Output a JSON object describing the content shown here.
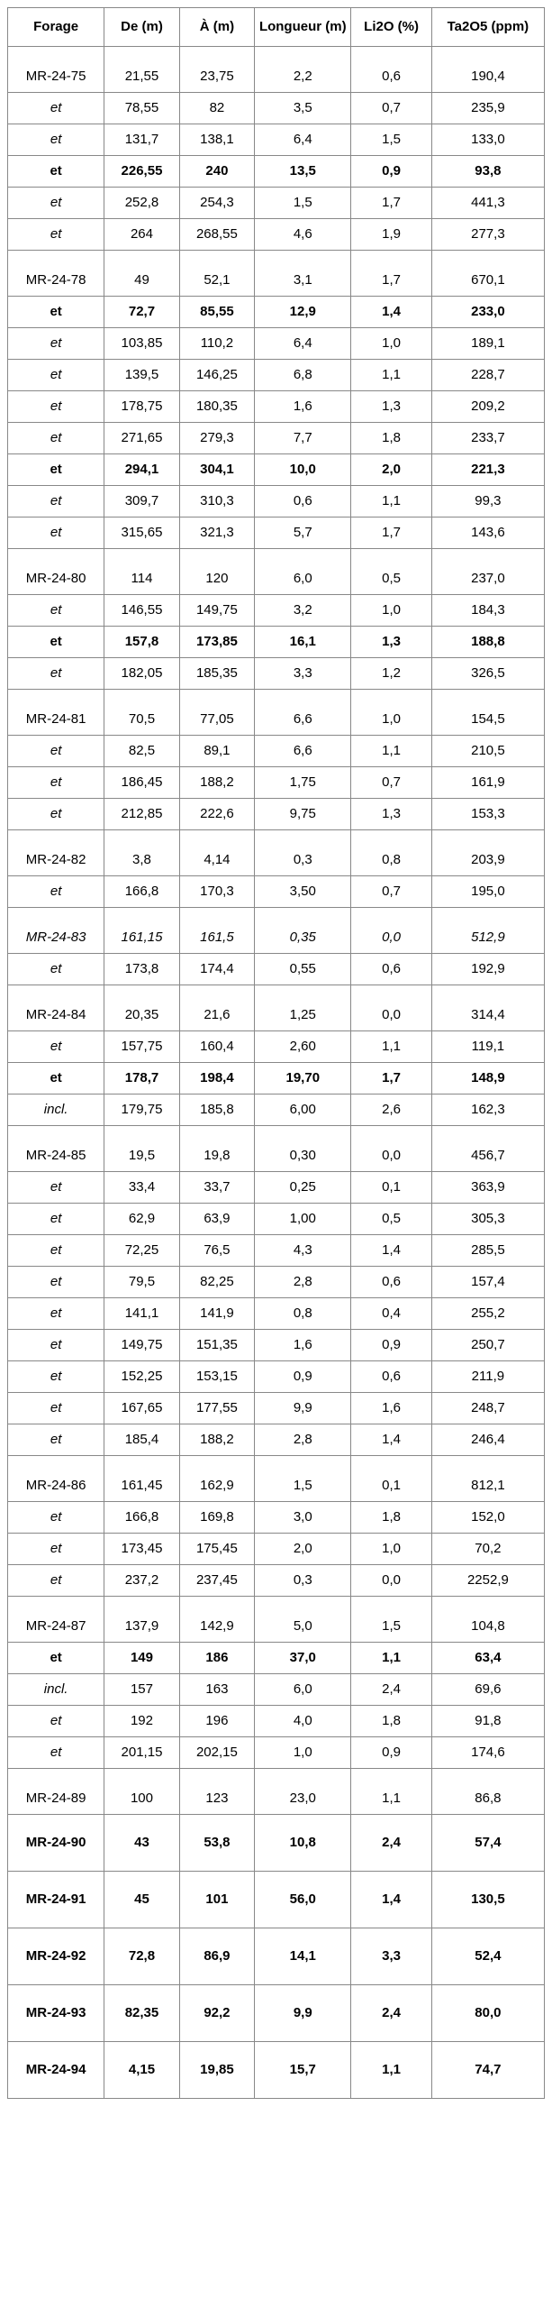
{
  "headers": {
    "forage": "Forage",
    "de": "De (m)",
    "a": "À (m)",
    "longueur": "Longueur (m)",
    "li2o": "Li2O (%)",
    "ta2o5": "Ta2O5 (ppm)"
  },
  "rows": [
    {
      "cells": [
        "MR-24-75",
        "21,55",
        "23,75",
        "2,2",
        "0,6",
        "190,4"
      ],
      "section": true
    },
    {
      "cells": [
        "et",
        "78,55",
        "82",
        "3,5",
        "0,7",
        "235,9"
      ],
      "italic": true
    },
    {
      "cells": [
        "et",
        "131,7",
        "138,1",
        "6,4",
        "1,5",
        "133,0"
      ],
      "italic": true
    },
    {
      "cells": [
        "et",
        "226,55",
        "240",
        "13,5",
        "0,9",
        "93,8"
      ],
      "bold": true
    },
    {
      "cells": [
        "et",
        "252,8",
        "254,3",
        "1,5",
        "1,7",
        "441,3"
      ],
      "italic": true
    },
    {
      "cells": [
        "et",
        "264",
        "268,55",
        "4,6",
        "1,9",
        "277,3"
      ],
      "italic": true
    },
    {
      "cells": [
        "MR-24-78",
        "49",
        "52,1",
        "3,1",
        "1,7",
        "670,1"
      ],
      "section": true
    },
    {
      "cells": [
        "et",
        "72,7",
        "85,55",
        "12,9",
        "1,4",
        "233,0"
      ],
      "bold": true
    },
    {
      "cells": [
        "et",
        "103,85",
        "110,2",
        "6,4",
        "1,0",
        "189,1"
      ],
      "italic": true
    },
    {
      "cells": [
        "et",
        "139,5",
        "146,25",
        "6,8",
        "1,1",
        "228,7"
      ],
      "italic": true
    },
    {
      "cells": [
        "et",
        "178,75",
        "180,35",
        "1,6",
        "1,3",
        "209,2"
      ],
      "italic": true
    },
    {
      "cells": [
        "et",
        "271,65",
        "279,3",
        "7,7",
        "1,8",
        "233,7"
      ],
      "italic": true
    },
    {
      "cells": [
        "et",
        "294,1",
        "304,1",
        "10,0",
        "2,0",
        "221,3"
      ],
      "bold": true
    },
    {
      "cells": [
        "et",
        "309,7",
        "310,3",
        "0,6",
        "1,1",
        "99,3"
      ],
      "italic": true
    },
    {
      "cells": [
        "et",
        "315,65",
        "321,3",
        "5,7",
        "1,7",
        "143,6"
      ],
      "italic": true
    },
    {
      "cells": [
        "MR-24-80",
        "114",
        "120",
        "6,0",
        "0,5",
        "237,0"
      ],
      "section": true
    },
    {
      "cells": [
        "et",
        "146,55",
        "149,75",
        "3,2",
        "1,0",
        "184,3"
      ],
      "italic": true
    },
    {
      "cells": [
        "et",
        "157,8",
        "173,85",
        "16,1",
        "1,3",
        "188,8"
      ],
      "bold": true
    },
    {
      "cells": [
        "et",
        "182,05",
        "185,35",
        "3,3",
        "1,2",
        "326,5"
      ],
      "italic": true
    },
    {
      "cells": [
        "MR-24-81",
        "70,5",
        "77,05",
        "6,6",
        "1,0",
        "154,5"
      ],
      "section": true
    },
    {
      "cells": [
        "et",
        "82,5",
        "89,1",
        "6,6",
        "1,1",
        "210,5"
      ],
      "italic": true
    },
    {
      "cells": [
        "et",
        "186,45",
        "188,2",
        "1,75",
        "0,7",
        "161,9"
      ],
      "italic": true
    },
    {
      "cells": [
        "et",
        "212,85",
        "222,6",
        "9,75",
        "1,3",
        "153,3"
      ],
      "italic": true
    },
    {
      "cells": [
        "MR-24-82",
        "3,8",
        "4,14",
        "0,3",
        "0,8",
        "203,9"
      ],
      "section": true
    },
    {
      "cells": [
        "et",
        "166,8",
        "170,3",
        "3,50",
        "0,7",
        "195,0"
      ],
      "italic": true
    },
    {
      "cells": [
        "MR-24-83",
        "161,15",
        "161,5",
        "0,35",
        "0,0",
        "512,9"
      ],
      "section": true,
      "fullItalic": true
    },
    {
      "cells": [
        "et",
        "173,8",
        "174,4",
        "0,55",
        "0,6",
        "192,9"
      ],
      "italic": true
    },
    {
      "cells": [
        "MR-24-84",
        "20,35",
        "21,6",
        "1,25",
        "0,0",
        "314,4"
      ],
      "section": true
    },
    {
      "cells": [
        "et",
        "157,75",
        "160,4",
        "2,60",
        "1,1",
        "119,1"
      ],
      "italic": true
    },
    {
      "cells": [
        "et",
        "178,7",
        "198,4",
        "19,70",
        "1,7",
        "148,9"
      ],
      "bold": true
    },
    {
      "cells": [
        "incl.",
        "179,75",
        "185,8",
        "6,00",
        "2,6",
        "162,3"
      ],
      "italic": true
    },
    {
      "cells": [
        "MR-24-85",
        "19,5",
        "19,8",
        "0,30",
        "0,0",
        "456,7"
      ],
      "section": true
    },
    {
      "cells": [
        "et",
        "33,4",
        "33,7",
        "0,25",
        "0,1",
        "363,9"
      ],
      "italic": true
    },
    {
      "cells": [
        "et",
        "62,9",
        "63,9",
        "1,00",
        "0,5",
        "305,3"
      ],
      "italic": true
    },
    {
      "cells": [
        "et",
        "72,25",
        "76,5",
        "4,3",
        "1,4",
        "285,5"
      ],
      "italic": true
    },
    {
      "cells": [
        "et",
        "79,5",
        "82,25",
        "2,8",
        "0,6",
        "157,4"
      ],
      "italic": true
    },
    {
      "cells": [
        "et",
        "141,1",
        "141,9",
        "0,8",
        "0,4",
        "255,2"
      ],
      "italic": true
    },
    {
      "cells": [
        "et",
        "149,75",
        "151,35",
        "1,6",
        "0,9",
        "250,7"
      ],
      "italic": true
    },
    {
      "cells": [
        "et",
        "152,25",
        "153,15",
        "0,9",
        "0,6",
        "211,9"
      ],
      "italic": true
    },
    {
      "cells": [
        "et",
        "167,65",
        "177,55",
        "9,9",
        "1,6",
        "248,7"
      ],
      "italic": true
    },
    {
      "cells": [
        "et",
        "185,4",
        "188,2",
        "2,8",
        "1,4",
        "246,4"
      ],
      "italic": true
    },
    {
      "cells": [
        "MR-24-86",
        "161,45",
        "162,9",
        "1,5",
        "0,1",
        "812,1"
      ],
      "section": true
    },
    {
      "cells": [
        "et",
        "166,8",
        "169,8",
        "3,0",
        "1,8",
        "152,0"
      ],
      "italic": true
    },
    {
      "cells": [
        "et",
        "173,45",
        "175,45",
        "2,0",
        "1,0",
        "70,2"
      ],
      "italic": true
    },
    {
      "cells": [
        "et",
        "237,2",
        "237,45",
        "0,3",
        "0,0",
        "2252,9"
      ],
      "italic": true
    },
    {
      "cells": [
        "MR-24-87",
        "137,9",
        "142,9",
        "5,0",
        "1,5",
        "104,8"
      ],
      "section": true
    },
    {
      "cells": [
        "et",
        "149",
        "186",
        "37,0",
        "1,1",
        "63,4"
      ],
      "bold": true
    },
    {
      "cells": [
        "incl.",
        "157",
        "163",
        "6,0",
        "2,4",
        "69,6"
      ],
      "italic": true
    },
    {
      "cells": [
        "et",
        "192",
        "196",
        "4,0",
        "1,8",
        "91,8"
      ],
      "italic": true
    },
    {
      "cells": [
        "et",
        "201,15",
        "202,15",
        "1,0",
        "0,9",
        "174,6"
      ],
      "italic": true
    },
    {
      "cells": [
        "MR-24-89",
        "100",
        "123",
        "23,0",
        "1,1",
        "86,8"
      ],
      "section": true
    },
    {
      "cells": [
        "MR-24-90",
        "43",
        "53,8",
        "10,8",
        "2,4",
        "57,4"
      ],
      "bold": true,
      "tall": true
    },
    {
      "cells": [
        "MR-24-91",
        "45",
        "101",
        "56,0",
        "1,4",
        "130,5"
      ],
      "bold": true,
      "tall": true
    },
    {
      "cells": [
        "MR-24-92",
        "72,8",
        "86,9",
        "14,1",
        "3,3",
        "52,4"
      ],
      "bold": true,
      "tall": true
    },
    {
      "cells": [
        "MR-24-93",
        "82,35",
        "92,2",
        "9,9",
        "2,4",
        "80,0"
      ],
      "bold": true,
      "tall": true
    },
    {
      "cells": [
        "MR-24-94",
        "4,15",
        "19,85",
        "15,7",
        "1,1",
        "74,7"
      ],
      "bold": true,
      "tall": true
    }
  ]
}
